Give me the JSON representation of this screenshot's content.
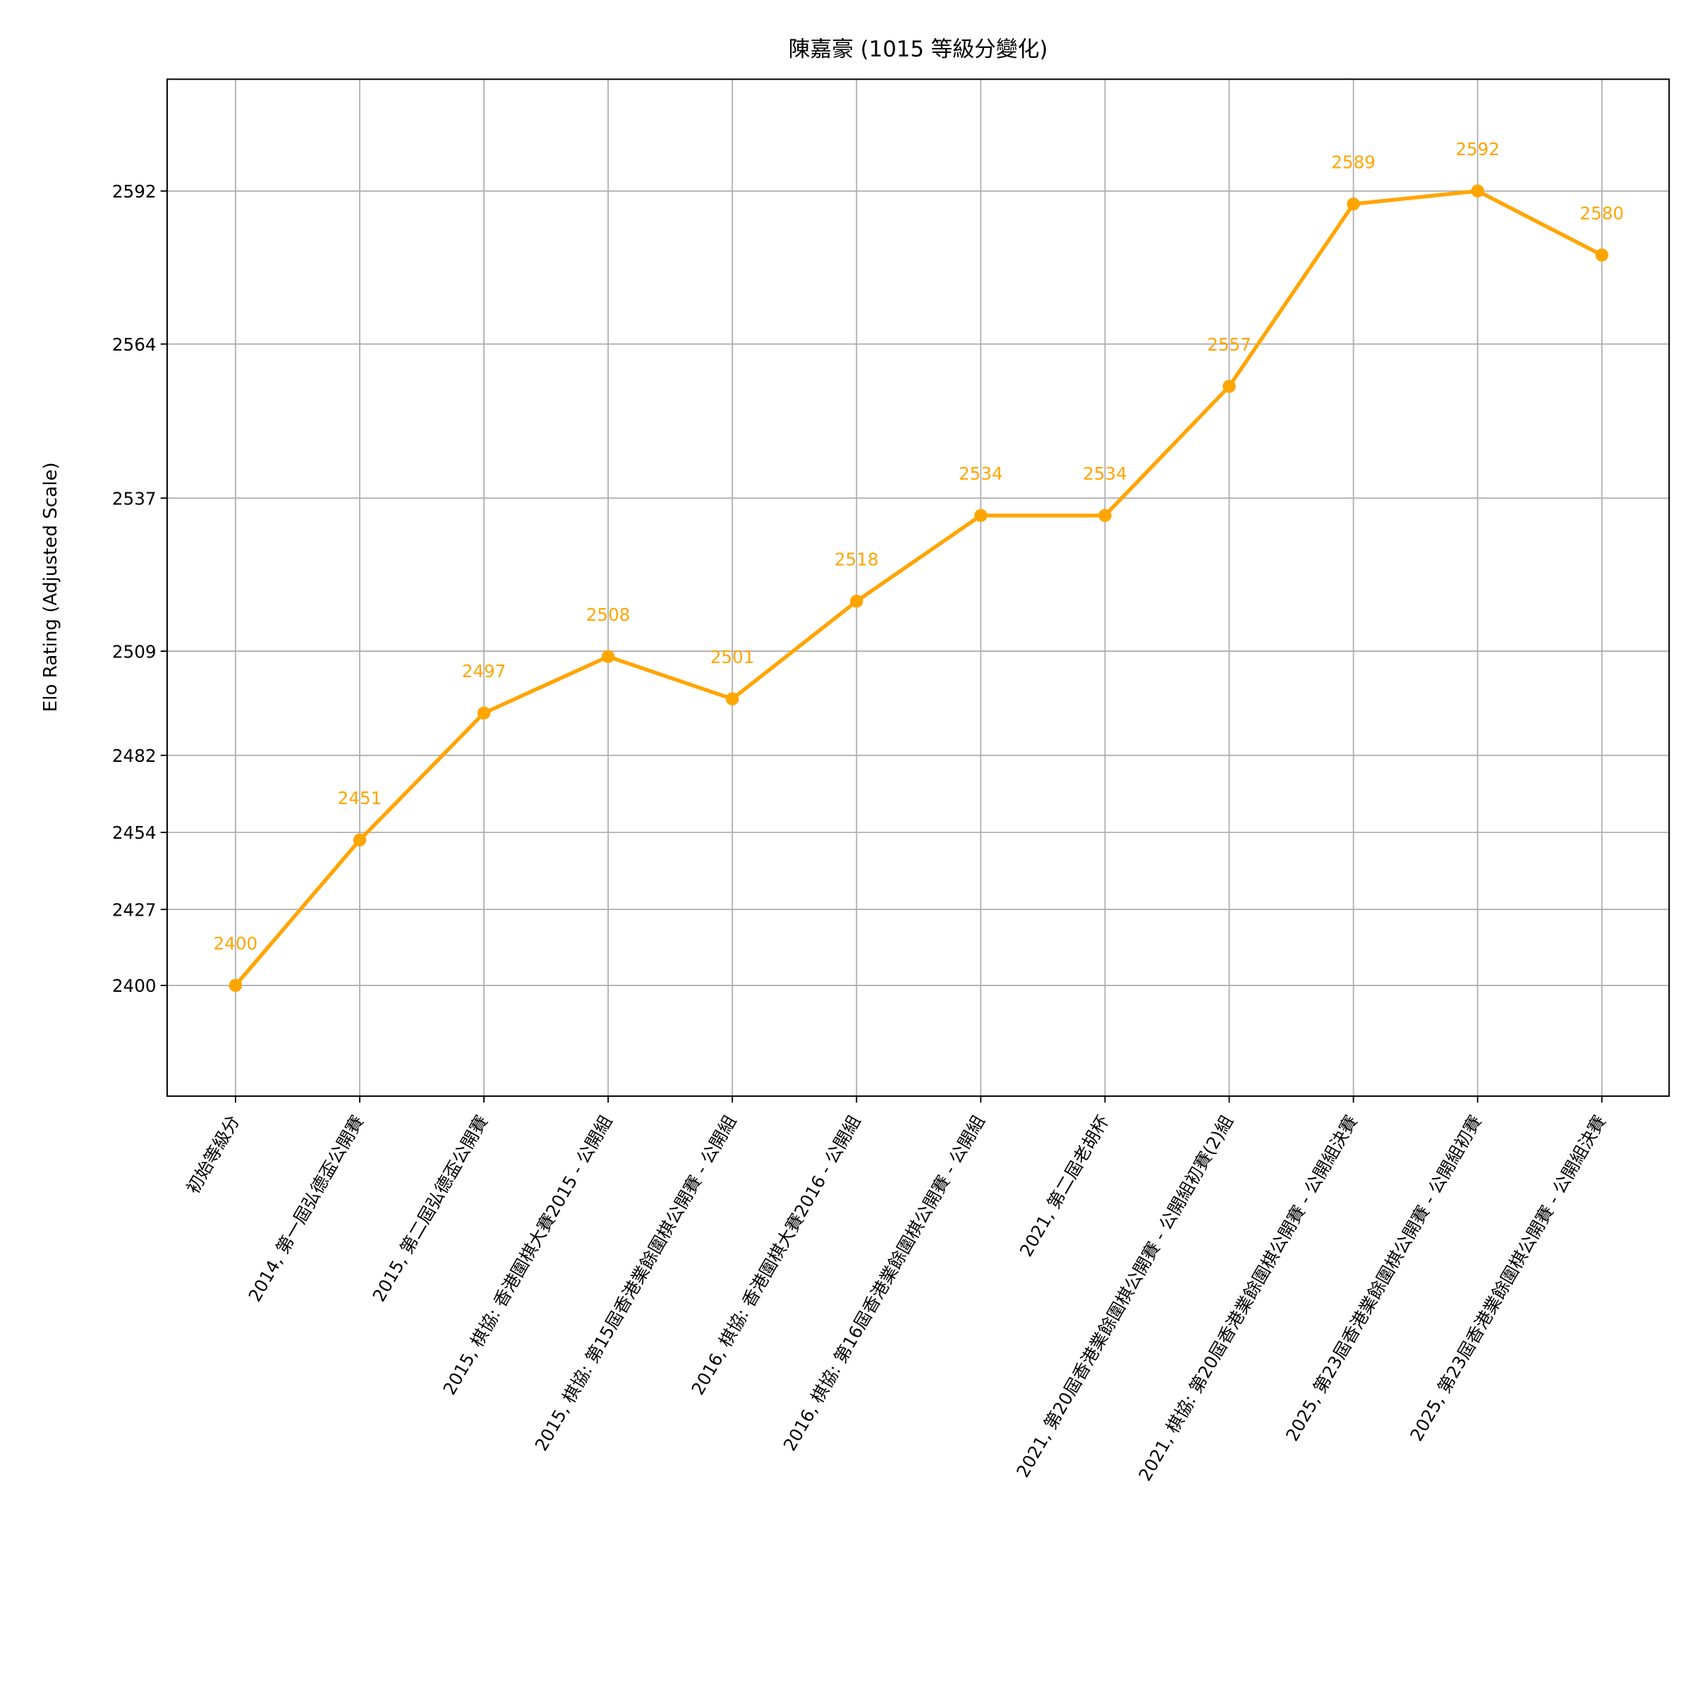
{
  "chart_data": {
    "type": "line",
    "title": "陳嘉豪 (1015 等級分變化)",
    "xlabel": "",
    "ylabel": "Elo Rating (Adjusted Scale)",
    "categories": [
      "初始等級分",
      "2014, 第一屆弘德盃公開賽",
      "2015, 第二屆弘德盃公開賽",
      "2015, 棋協: 香港圍棋大賽2015 - 公開組",
      "2015, 棋協: 第15屆香港業餘圍棋公開賽 - 公開組",
      "2016, 棋協: 香港圍棋大賽2016 - 公開組",
      "2016, 棋協: 第16屆香港業餘圍棋公開賽 - 公開組",
      "2021, 第二屆老胡杯",
      "2021, 第20屆香港業餘圍棋公開賽 - 公開組初賽(2)組",
      "2021, 棋協: 第20屆香港業餘圍棋公開賽 - 公開組決賽",
      "2025, 第23屆香港業餘圍棋公開賽 - 公開組初賽",
      "2025, 第23屆香港業餘圍棋公開賽 - 公開組決賽"
    ],
    "values": [
      2400,
      2451,
      2497,
      2508,
      2501,
      2518,
      2534,
      2534,
      2557,
      2589,
      2592,
      2580
    ],
    "data_labels": [
      "2400",
      "2451",
      "2497",
      "2508",
      "2501",
      "2518",
      "2534",
      "2534",
      "2557",
      "2589",
      "2592",
      "2580"
    ],
    "yticks": [
      "2400",
      "2427",
      "2454",
      "2482",
      "2509",
      "2537",
      "2564",
      "2592"
    ],
    "y_scale": "adjusted (non-linear)",
    "grid": true,
    "color": "#ffa500",
    "marker": "circle"
  }
}
